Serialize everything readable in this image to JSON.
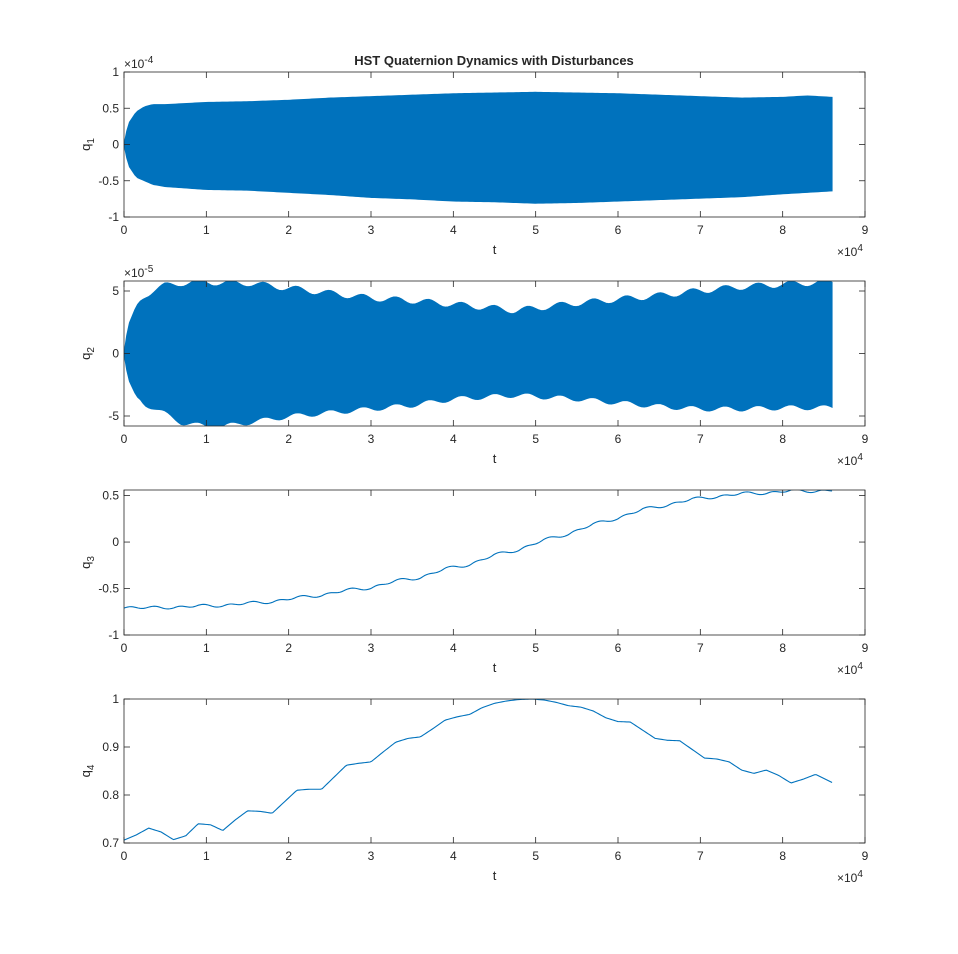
{
  "figure_title": "HST Quaternion Dynamics with Disturbances",
  "colors": {
    "line": "#0072BD",
    "axes": "#262626",
    "background": "#ffffff"
  },
  "chart_data": [
    {
      "type": "line",
      "style": "dense-oscillation-band",
      "title": "HST Quaternion Dynamics with Disturbances",
      "xlabel": "t",
      "ylabel": "q_1",
      "ylabel_base": "q",
      "ylabel_sub": "1",
      "xlim": [
        0,
        90000
      ],
      "ylim": [
        -1,
        1
      ],
      "x_ticks": [
        0,
        1,
        2,
        3,
        4,
        5,
        6,
        7,
        8,
        9
      ],
      "x_exponent_text": "×10",
      "x_exponent_power": "4",
      "y_ticks": [
        -1,
        -0.5,
        0,
        0.5,
        1
      ],
      "y_exponent_text": "×10",
      "y_exponent_power": "-4",
      "t_end": 86000,
      "center": 0,
      "envelope_t": [
        0,
        500,
        1500,
        2500,
        3500,
        5000,
        10000,
        15000,
        20000,
        25000,
        30000,
        35000,
        40000,
        45000,
        50000,
        55000,
        60000,
        65000,
        70000,
        75000,
        80000,
        83000,
        86000
      ],
      "envelope_upper": [
        0,
        0.28,
        0.45,
        0.52,
        0.55,
        0.55,
        0.58,
        0.59,
        0.61,
        0.64,
        0.66,
        0.68,
        0.7,
        0.71,
        0.72,
        0.71,
        0.7,
        0.68,
        0.66,
        0.64,
        0.65,
        0.67,
        0.65
      ],
      "envelope_lower": [
        0,
        -0.28,
        -0.45,
        -0.5,
        -0.55,
        -0.58,
        -0.62,
        -0.63,
        -0.66,
        -0.69,
        -0.73,
        -0.75,
        -0.78,
        -0.79,
        -0.81,
        -0.8,
        -0.78,
        -0.76,
        -0.74,
        -0.72,
        -0.68,
        -0.66,
        -0.64
      ]
    },
    {
      "type": "line",
      "style": "dense-oscillation-band",
      "xlabel": "t",
      "ylabel": "q_2",
      "ylabel_base": "q",
      "ylabel_sub": "2",
      "xlim": [
        0,
        90000
      ],
      "ylim": [
        -5.8,
        5.8
      ],
      "x_ticks": [
        0,
        1,
        2,
        3,
        4,
        5,
        6,
        7,
        8,
        9
      ],
      "x_exponent_text": "×10",
      "x_exponent_power": "4",
      "y_ticks": [
        -5,
        0,
        5
      ],
      "y_exponent_text": "×10",
      "y_exponent_power": "-5",
      "t_end": 86000,
      "center": 0,
      "envelope_t": [
        0,
        500,
        1500,
        2500,
        3500,
        5000,
        7000,
        10000,
        12000,
        15000,
        20000,
        25000,
        30000,
        35000,
        40000,
        45000,
        47500,
        50000,
        55000,
        60000,
        65000,
        70000,
        75000,
        80000,
        86000
      ],
      "envelope_upper": [
        0,
        2.2,
        3.8,
        4.6,
        5.0,
        5.4,
        5.6,
        5.7,
        5.6,
        5.6,
        5.2,
        4.8,
        4.4,
        4.2,
        3.9,
        3.6,
        3.4,
        3.6,
        4.0,
        4.3,
        4.6,
        5.0,
        5.3,
        5.5,
        5.7
      ],
      "envelope_lower": [
        0,
        -2.0,
        -3.4,
        -4.0,
        -4.3,
        -4.8,
        -5.5,
        -5.8,
        -5.8,
        -5.5,
        -5.0,
        -4.7,
        -4.4,
        -4.1,
        -3.6,
        -3.4,
        -3.3,
        -3.4,
        -3.6,
        -3.9,
        -4.2,
        -4.4,
        -4.4,
        -4.3,
        -4.3
      ],
      "ripple_amp": 0.25,
      "ripple_period": 4000
    },
    {
      "type": "line",
      "xlabel": "t",
      "ylabel": "q_3",
      "ylabel_base": "q",
      "ylabel_sub": "3",
      "xlim": [
        0,
        90000
      ],
      "ylim": [
        -1,
        0.56
      ],
      "x_ticks": [
        0,
        1,
        2,
        3,
        4,
        5,
        6,
        7,
        8,
        9
      ],
      "x_exponent_text": "×10",
      "x_exponent_power": "4",
      "y_ticks": [
        -1,
        -0.5,
        0,
        0.5
      ],
      "x": [
        0,
        3000,
        6000,
        9000,
        12000,
        15000,
        18000,
        21000,
        24000,
        27000,
        30000,
        33000,
        36000,
        39000,
        42000,
        45000,
        48000,
        51000,
        54000,
        57000,
        60000,
        63000,
        66000,
        69000,
        72000,
        75000,
        78000,
        81000,
        84000,
        86000
      ],
      "y": [
        -0.71,
        -0.7,
        -0.71,
        -0.68,
        -0.69,
        -0.65,
        -0.65,
        -0.59,
        -0.58,
        -0.51,
        -0.5,
        -0.41,
        -0.39,
        -0.28,
        -0.25,
        -0.13,
        -0.09,
        0.03,
        0.08,
        0.2,
        0.25,
        0.36,
        0.39,
        0.47,
        0.48,
        0.53,
        0.52,
        0.56,
        0.54,
        0.56
      ],
      "ripple_amp": 0.012,
      "ripple_period": 3000
    },
    {
      "type": "line",
      "xlabel": "t",
      "ylabel": "q_4",
      "ylabel_base": "q",
      "ylabel_sub": "4",
      "xlim": [
        0,
        90000
      ],
      "ylim": [
        0.7,
        1.0
      ],
      "x_ticks": [
        0,
        1,
        2,
        3,
        4,
        5,
        6,
        7,
        8,
        9
      ],
      "x_exponent_text": "×10",
      "x_exponent_power": "4",
      "y_ticks": [
        0.7,
        0.8,
        0.9,
        1
      ],
      "x": [
        0,
        1500,
        3000,
        4500,
        6000,
        7500,
        9000,
        10500,
        12000,
        13500,
        15000,
        16500,
        18000,
        19500,
        21000,
        22500,
        24000,
        25500,
        27000,
        28500,
        30000,
        31500,
        33000,
        34500,
        36000,
        37500,
        39000,
        40500,
        42000,
        43500,
        45000,
        46500,
        48000,
        49500,
        51000,
        52500,
        54000,
        55500,
        57000,
        58500,
        60000,
        61500,
        63000,
        64500,
        66000,
        67500,
        69000,
        70500,
        72000,
        73500,
        75000,
        76500,
        78000,
        79500,
        81000,
        82500,
        84000,
        86000
      ],
      "y": [
        0.706,
        0.717,
        0.731,
        0.723,
        0.707,
        0.715,
        0.74,
        0.738,
        0.726,
        0.748,
        0.767,
        0.766,
        0.762,
        0.786,
        0.81,
        0.812,
        0.812,
        0.837,
        0.862,
        0.866,
        0.869,
        0.89,
        0.91,
        0.918,
        0.921,
        0.938,
        0.956,
        0.963,
        0.968,
        0.982,
        0.991,
        0.996,
        0.999,
        1.0,
        0.998,
        0.993,
        0.986,
        0.983,
        0.975,
        0.961,
        0.953,
        0.952,
        0.935,
        0.918,
        0.914,
        0.913,
        0.895,
        0.877,
        0.875,
        0.869,
        0.852,
        0.845,
        0.852,
        0.841,
        0.825,
        0.833,
        0.843,
        0.826
      ]
    }
  ]
}
